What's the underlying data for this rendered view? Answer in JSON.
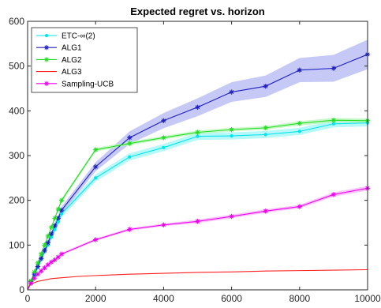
{
  "chart_data": {
    "type": "line",
    "title": "Expected regret vs. horizon",
    "xlabel": "",
    "ylabel": "",
    "xlim": [
      0,
      10000
    ],
    "ylim": [
      0,
      600
    ],
    "xticks": [
      0,
      2000,
      4000,
      6000,
      8000,
      10000
    ],
    "yticks": [
      0,
      100,
      200,
      300,
      400,
      500,
      600
    ],
    "legend_position": "top-left",
    "series": [
      {
        "name": "ETC-∞(2)",
        "color": "#00e5ee",
        "band_color": "#9ff5f5",
        "marker": "dot",
        "x": [
          0,
          100,
          200,
          300,
          400,
          500,
          600,
          700,
          800,
          900,
          1000,
          2000,
          3000,
          4000,
          5000,
          6000,
          7000,
          8000,
          9000,
          10000
        ],
        "y": [
          0,
          17,
          34,
          50,
          68,
          85,
          100,
          118,
          135,
          152,
          170,
          250,
          297,
          318,
          343,
          344,
          347,
          354,
          371,
          373
        ],
        "band": [
          0,
          2,
          4,
          5,
          6,
          6,
          7,
          7,
          8,
          8,
          8,
          8,
          8,
          8,
          8,
          8,
          8,
          8,
          8,
          8
        ]
      },
      {
        "name": "ALG1",
        "color": "#1f1fbf",
        "band_color": "#b3b6f2",
        "marker": "star",
        "x": [
          0,
          100,
          200,
          300,
          400,
          500,
          600,
          700,
          800,
          900,
          1000,
          2000,
          3000,
          4000,
          5000,
          6000,
          7000,
          8000,
          9000,
          10000
        ],
        "y": [
          0,
          18,
          35,
          52,
          70,
          88,
          105,
          125,
          143,
          160,
          178,
          275,
          340,
          378,
          408,
          442,
          455,
          491,
          495,
          526
        ],
        "band": [
          0,
          2,
          3,
          4,
          5,
          5,
          6,
          6,
          7,
          7,
          8,
          10,
          14,
          17,
          20,
          22,
          24,
          27,
          30,
          33
        ]
      },
      {
        "name": "ALG2",
        "color": "#22dd22",
        "band_color": "#b5f5b5",
        "marker": "star",
        "x": [
          0,
          100,
          200,
          300,
          400,
          500,
          600,
          700,
          800,
          900,
          1000,
          2000,
          3000,
          4000,
          5000,
          6000,
          7000,
          8000,
          9000,
          10000
        ],
        "y": [
          0,
          20,
          40,
          60,
          80,
          100,
          120,
          140,
          160,
          180,
          200,
          313,
          327,
          340,
          352,
          358,
          362,
          372,
          379,
          378
        ],
        "band": [
          0,
          1,
          2,
          2,
          3,
          3,
          3,
          3,
          3,
          4,
          4,
          4,
          4,
          4,
          4,
          4,
          4,
          5,
          5,
          5
        ]
      },
      {
        "name": "ALG3",
        "color": "#ff2020",
        "band_color": "#ffb3b3",
        "marker": "none",
        "x": [
          0,
          50,
          100,
          200,
          300,
          500,
          700,
          1000,
          1500,
          2000,
          3000,
          4000,
          5000,
          6000,
          7000,
          8000,
          9000,
          10000
        ],
        "y": [
          0,
          9,
          12,
          16,
          19,
          22,
          25,
          27,
          30,
          32,
          35,
          37,
          39,
          40,
          42,
          43,
          44,
          45
        ],
        "band": [
          0,
          0.5,
          0.5,
          0.5,
          0.5,
          0.5,
          0.5,
          0.5,
          0.5,
          0.5,
          0.5,
          0.5,
          0.5,
          0.5,
          0.5,
          0.5,
          0.5,
          0.5
        ]
      },
      {
        "name": "Sampling-UCB",
        "color": "#ee00ee",
        "band_color": "#f7b3f7",
        "marker": "star",
        "x": [
          0,
          100,
          200,
          300,
          400,
          500,
          600,
          700,
          800,
          900,
          1000,
          2000,
          3000,
          4000,
          5000,
          6000,
          7000,
          8000,
          9000,
          10000
        ],
        "y": [
          0,
          15,
          26,
          35,
          42,
          49,
          56,
          62,
          67,
          73,
          80,
          112,
          135,
          145,
          153,
          164,
          176,
          186,
          213,
          227
        ],
        "band": [
          0,
          1,
          1,
          2,
          2,
          2,
          2,
          2,
          2,
          2,
          3,
          3,
          3,
          3,
          4,
          4,
          4,
          4,
          5,
          5
        ]
      }
    ]
  }
}
